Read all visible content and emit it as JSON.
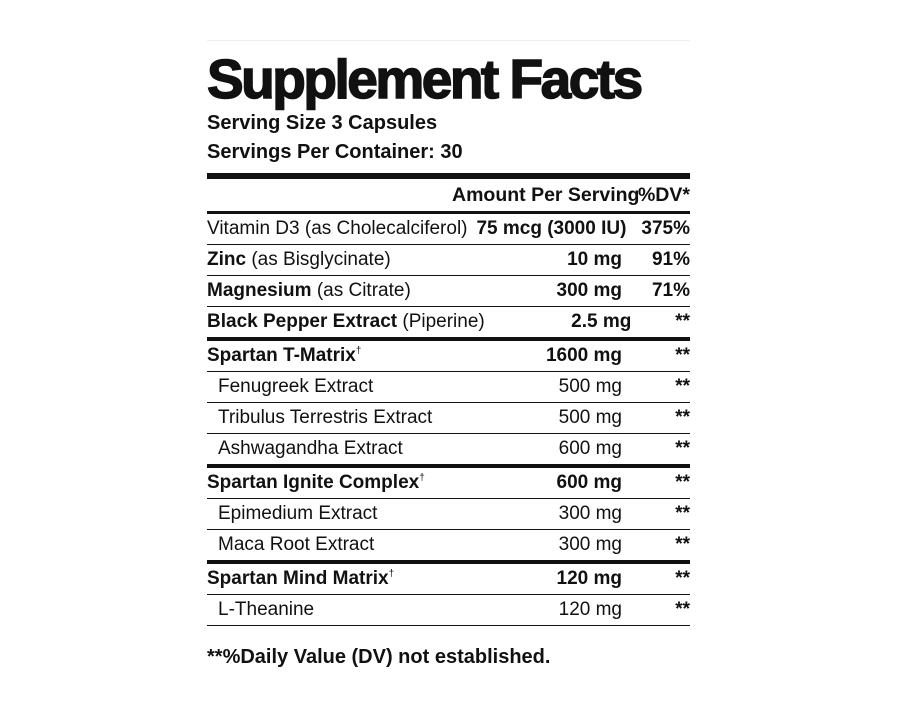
{
  "title": "Supplement Facts",
  "serving_size": "Serving Size 3 Capsules",
  "servings_per_container": "Servings Per Container: 30",
  "header": {
    "amount": "Amount Per Serving",
    "dv": "%DV*"
  },
  "nutrients": [
    {
      "name": "Vitamin D3",
      "qualifier": "(as Cholecalciferol)",
      "amount": "75 mcg (3000 IU)",
      "dv": "375%"
    },
    {
      "name": "Zinc",
      "qualifier": "(as Bisglycinate)",
      "amount": "10 mg",
      "dv": "91%"
    },
    {
      "name": "Magnesium",
      "qualifier": "(as Citrate)",
      "amount": "300 mg",
      "dv": "71%"
    },
    {
      "name": "Black Pepper Extract",
      "qualifier": "(Piperine)",
      "amount": "2.5 mg",
      "dv": "**"
    }
  ],
  "blends": [
    {
      "name": "Spartan T-Matrix",
      "superscript": "†",
      "amount": "1600 mg",
      "dv": "**",
      "ingredients": [
        {
          "name": "Fenugreek Extract",
          "amount": "500 mg",
          "dv": "**"
        },
        {
          "name": "Tribulus Terrestris Extract",
          "amount": "500 mg",
          "dv": "**"
        },
        {
          "name": "Ashwagandha Extract",
          "amount": "600 mg",
          "dv": "**"
        }
      ]
    },
    {
      "name": "Spartan Ignite Complex",
      "superscript": "†",
      "amount": "600 mg",
      "dv": "**",
      "ingredients": [
        {
          "name": "Epimedium Extract",
          "amount": "300 mg",
          "dv": "**"
        },
        {
          "name": "Maca Root Extract",
          "amount": "300 mg",
          "dv": "**"
        }
      ]
    },
    {
      "name": "Spartan Mind Matrix",
      "superscript": "†",
      "amount": "120 mg",
      "dv": "**",
      "ingredients": [
        {
          "name": "L-Theanine",
          "amount": "120 mg",
          "dv": "**"
        }
      ]
    }
  ],
  "footnote": "**%Daily Value (DV) not established."
}
